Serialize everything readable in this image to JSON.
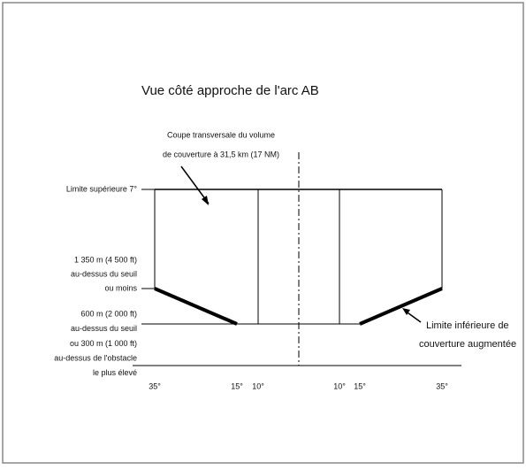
{
  "title": "Vue côté approche de l'arc AB",
  "section_note": {
    "lines": [
      "Coupe transversale du volume",
      "de couverture à 31,5 km (17 NM)"
    ]
  },
  "upper_limit": "Limite supérieure 7°",
  "mid_level": {
    "lines": [
      "1 350 m (4 500 ft)",
      "au-dessus du seuil",
      "ou moins"
    ]
  },
  "low_level": {
    "lines": [
      "600 m (2 000 ft)",
      "au-dessus du seuil",
      "ou 300 m (1 000 ft)",
      "au-dessus de l'obstacle",
      "le plus élevé"
    ]
  },
  "lower_limit_note": {
    "lines": [
      "Limite inférieure de",
      "couverture augmentée"
    ]
  },
  "angles": [
    "35°",
    "15°",
    "10°",
    "10°",
    "15°",
    "35°"
  ]
}
